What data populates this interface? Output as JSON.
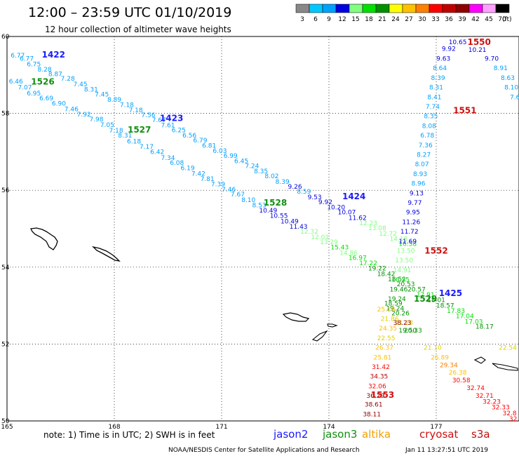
{
  "header": {
    "title": "12:00 – 23:59 UTC 01/10/2019",
    "subtitle": "12 hour collection of altimeter wave heights"
  },
  "footer": {
    "note": "note:  1) Time is in UTC;  2) SWH is in feet",
    "credit": "NOAA/NESDIS Center for Satellite Applications and Research",
    "timestamp": "Jan 11 13:27:51 UTC 2019"
  },
  "legend": {
    "unit": "(ft)",
    "labels": [
      "3",
      "6",
      "9",
      "12",
      "15",
      "18",
      "21",
      "24",
      "27",
      "30",
      "33",
      "36",
      "39",
      "42",
      "45",
      "70"
    ],
    "colors": [
      "#888888",
      "#00c8ff",
      "#00a0ff",
      "#0000e0",
      "#80ff80",
      "#00e000",
      "#009000",
      "#ffff00",
      "#ffc000",
      "#ff8000",
      "#ff0000",
      "#c00000",
      "#900000",
      "#ff00ff",
      "#ffa0ff",
      "#000000"
    ]
  },
  "satellites": [
    {
      "name": "jason2",
      "color": "#1a1aff"
    },
    {
      "name": "jason3",
      "color": "#109010"
    },
    {
      "name": "altika",
      "color": "#f0a000"
    },
    {
      "name": "cryosat",
      "color": "#d01010"
    },
    {
      "name": "s3a",
      "color": "#c01010"
    }
  ],
  "chart_data": {
    "type": "scatter",
    "title": "12:00 – 23:59 UTC 01/10/2019",
    "subtitle": "12 hour collection of altimeter wave heights",
    "xlim": [
      165,
      179.5
    ],
    "ylim": [
      50,
      60
    ],
    "x_ticks": [
      "165",
      "168",
      "171",
      "174",
      "177"
    ],
    "y_ticks": [
      "50",
      "52",
      "54",
      "56",
      "58",
      "60"
    ],
    "grid": "dotted",
    "units": "ft",
    "passes": [
      {
        "id": "1422",
        "sat": "jason2",
        "label": {
          "lon": 166.3,
          "lat": 59.45
        },
        "points": [
          [
            165.3,
            59.45,
            "6.77"
          ],
          [
            165.55,
            59.37,
            "6.77"
          ],
          [
            165.75,
            59.22,
            "6.75"
          ],
          [
            166.05,
            59.09,
            "8.28"
          ],
          [
            166.35,
            58.97,
            "8.87"
          ],
          [
            166.7,
            58.85,
            "7.28"
          ],
          [
            167.05,
            58.7,
            "7.45"
          ],
          [
            167.35,
            58.57,
            "8.31"
          ],
          [
            167.65,
            58.44,
            "7.45"
          ],
          [
            168.0,
            58.3,
            "8.89"
          ],
          [
            168.35,
            58.17,
            "7.18"
          ],
          [
            168.6,
            58.03,
            "7.18"
          ],
          [
            168.95,
            57.9,
            "7.56"
          ],
          [
            169.25,
            57.77,
            "7.67"
          ],
          [
            169.5,
            57.64,
            "7.61"
          ],
          [
            169.8,
            57.51,
            "6.25"
          ],
          [
            170.1,
            57.37,
            "6.56"
          ],
          [
            170.4,
            57.24,
            "6.79"
          ],
          [
            170.65,
            57.11,
            "6.81"
          ],
          [
            170.95,
            56.97,
            "6.03"
          ],
          [
            171.25,
            56.84,
            "6.99"
          ],
          [
            171.55,
            56.71,
            "6.45"
          ],
          [
            171.85,
            56.58,
            "7.24"
          ],
          [
            172.1,
            56.44,
            "8.35"
          ],
          [
            172.4,
            56.31,
            "8.02"
          ],
          [
            172.7,
            56.17,
            "8.39"
          ],
          [
            173.05,
            56.04,
            "9.26"
          ],
          [
            173.3,
            55.91,
            "8.59"
          ],
          [
            173.6,
            55.77,
            "9.53"
          ],
          [
            173.9,
            55.64,
            "9.92"
          ],
          [
            174.2,
            55.5,
            "10.20"
          ],
          [
            174.5,
            55.37,
            "10.07"
          ],
          [
            174.8,
            55.23,
            "11.62"
          ],
          [
            175.1,
            55.09,
            "12.23"
          ],
          [
            175.35,
            54.96,
            "13.08"
          ],
          [
            175.65,
            54.82,
            "12.72"
          ],
          [
            175.95,
            54.68,
            "14.18"
          ],
          [
            176.2,
            54.55,
            "16.58"
          ]
        ]
      },
      {
        "id": "1526",
        "sat": "jason3",
        "label": {
          "lon": 166.0,
          "lat": 58.75
        },
        "points": [
          [
            165.25,
            58.78,
            "6.46"
          ],
          [
            165.5,
            58.62,
            "7.07"
          ],
          [
            165.75,
            58.47,
            "6.95"
          ],
          [
            166.1,
            58.34,
            "6.69"
          ],
          [
            166.45,
            58.2,
            "6.90"
          ],
          [
            166.8,
            58.06,
            "7.46"
          ],
          [
            167.15,
            57.92,
            "7.92"
          ],
          [
            167.5,
            57.79,
            "7.98"
          ],
          [
            167.8,
            57.65,
            "7.05"
          ],
          [
            168.05,
            57.5,
            "7.18"
          ],
          [
            168.3,
            57.37,
            "8.31"
          ],
          [
            168.55,
            57.22,
            "6.18"
          ],
          [
            168.9,
            57.08,
            "7.17"
          ],
          [
            169.2,
            56.94,
            "6.42"
          ],
          [
            169.5,
            56.79,
            "7.34"
          ],
          [
            169.75,
            56.66,
            "6.08"
          ],
          [
            170.05,
            56.52,
            "6.19"
          ],
          [
            170.35,
            56.38,
            "7.42"
          ],
          [
            170.6,
            56.24,
            "7.81"
          ],
          [
            170.9,
            56.1,
            "7.39"
          ],
          [
            171.2,
            55.97,
            "7.46"
          ],
          [
            171.45,
            55.84,
            "7.67"
          ],
          [
            171.75,
            55.69,
            "8.10"
          ],
          [
            172.05,
            55.56,
            "8.53"
          ],
          [
            172.3,
            55.42,
            "10.49"
          ],
          [
            172.6,
            55.28,
            "10.55"
          ],
          [
            172.9,
            55.14,
            "10.49"
          ],
          [
            173.15,
            55.0,
            "11.43"
          ],
          [
            173.45,
            54.87,
            "12.32"
          ],
          [
            173.75,
            54.73,
            "12.01"
          ],
          [
            174.0,
            54.6,
            "13.29"
          ],
          [
            174.3,
            54.46,
            "15.43"
          ],
          [
            174.55,
            54.32,
            "14.86"
          ],
          [
            174.8,
            54.19,
            "16.97"
          ],
          [
            175.1,
            54.05,
            "17.22"
          ],
          [
            175.35,
            53.91,
            "19.22"
          ],
          [
            175.6,
            53.77,
            "18.42"
          ],
          [
            175.9,
            53.63,
            "18.52"
          ],
          [
            176.15,
            53.5,
            "20.53"
          ],
          [
            176.45,
            53.37,
            "20.57"
          ],
          [
            176.7,
            53.23,
            "17.91"
          ],
          [
            177.0,
            53.09,
            "18.01"
          ],
          [
            177.25,
            52.95,
            "18.57"
          ],
          [
            177.55,
            52.81,
            "17.83"
          ],
          [
            177.8,
            52.67,
            "17.04"
          ],
          [
            178.05,
            52.53,
            "17.03"
          ],
          [
            178.35,
            52.4,
            "18.17"
          ]
        ]
      },
      {
        "id": "1527",
        "sat": "jason3",
        "label": {
          "lon": 168.7,
          "lat": 57.5
        },
        "points": []
      },
      {
        "id": "1423",
        "sat": "jason2",
        "label": {
          "lon": 169.6,
          "lat": 57.8
        },
        "points": []
      },
      {
        "id": "1424",
        "sat": "jason2",
        "label": {
          "lon": 174.7,
          "lat": 55.77
        },
        "points": []
      },
      {
        "id": "1528",
        "sat": "jason3",
        "label": {
          "lon": 172.5,
          "lat": 55.6
        },
        "points": []
      },
      {
        "id": "1529",
        "sat": "jason3",
        "label": {
          "lon": 176.7,
          "lat": 53.1
        },
        "points": []
      },
      {
        "id": "1425",
        "sat": "jason2",
        "label": {
          "lon": 177.4,
          "lat": 53.25
        },
        "points": [
          [
            177.6,
            59.8,
            "10.65"
          ],
          [
            177.35,
            59.63,
            "9.92"
          ],
          [
            177.2,
            59.37,
            "9.63"
          ],
          [
            177.1,
            59.12,
            "8.64"
          ],
          [
            177.05,
            58.87,
            "8.39"
          ],
          [
            177.0,
            58.62,
            "8.31"
          ],
          [
            176.95,
            58.37,
            "8.41"
          ],
          [
            176.9,
            58.12,
            "7.74"
          ],
          [
            176.85,
            57.87,
            "8.35"
          ],
          [
            176.8,
            57.62,
            "8.08"
          ],
          [
            176.75,
            57.37,
            "6.78"
          ],
          [
            176.7,
            57.12,
            "7.36"
          ],
          [
            176.65,
            56.87,
            "8.27"
          ],
          [
            176.6,
            56.62,
            "8.07"
          ],
          [
            176.55,
            56.37,
            "8.93"
          ],
          [
            176.5,
            56.12,
            "8.96"
          ],
          [
            176.45,
            55.87,
            "9.13"
          ],
          [
            176.4,
            55.62,
            "9.77"
          ],
          [
            176.35,
            55.37,
            "9.95"
          ],
          [
            176.3,
            55.12,
            "11.26"
          ],
          [
            176.25,
            54.87,
            "11.72"
          ],
          [
            176.2,
            54.62,
            "11.69"
          ],
          [
            176.15,
            54.37,
            "13.50"
          ],
          [
            176.1,
            54.12,
            "13.50"
          ],
          [
            176.05,
            53.87,
            "14.91"
          ],
          [
            176.0,
            53.62,
            "16.55"
          ],
          [
            175.95,
            53.37,
            "19.46"
          ],
          [
            175.9,
            53.12,
            "19.24"
          ],
          [
            175.85,
            52.87,
            "19.24"
          ]
        ]
      },
      {
        "id": "1550",
        "sat": "cryosat",
        "label": {
          "lon": 178.2,
          "lat": 59.78
        },
        "points": [
          [
            178.15,
            59.6,
            "10.21"
          ],
          [
            178.55,
            59.37,
            "9.70"
          ],
          [
            178.8,
            59.12,
            "8.91"
          ],
          [
            179.0,
            58.87,
            "8.63"
          ],
          [
            179.1,
            58.62,
            "8.10"
          ],
          [
            179.2,
            58.37,
            "7.6"
          ]
        ]
      },
      {
        "id": "1551",
        "sat": "cryosat",
        "label": {
          "lon": 177.8,
          "lat": 58.0
        },
        "points": []
      },
      {
        "id": "1552",
        "sat": "cryosat",
        "label": {
          "lon": 177.0,
          "lat": 54.35
        },
        "points": []
      },
      {
        "id": "1553",
        "sat": "cryosat",
        "label": {
          "lon": 175.5,
          "lat": 50.6
        },
        "points": [
          [
            175.6,
            52.85,
            "25.18"
          ],
          [
            175.7,
            52.6,
            "21.86"
          ],
          [
            175.65,
            52.35,
            "24.35"
          ],
          [
            175.6,
            52.1,
            "22.55"
          ],
          [
            175.55,
            51.85,
            "26.37"
          ],
          [
            175.5,
            51.6,
            "25.81"
          ],
          [
            175.45,
            51.35,
            "31.42"
          ],
          [
            175.4,
            51.1,
            "34.35"
          ],
          [
            175.35,
            50.85,
            "32.06"
          ],
          [
            175.3,
            50.6,
            "36.29"
          ],
          [
            175.25,
            50.37,
            "38.61"
          ],
          [
            175.2,
            50.12,
            "38.11"
          ]
        ]
      },
      {
        "id": "altika",
        "sat": "altika",
        "label": null,
        "points": [
          [
            175.8,
            53.0,
            "18.59"
          ],
          [
            176.0,
            52.75,
            "20.26"
          ],
          [
            176.1,
            52.5,
            "21.28"
          ],
          [
            176.2,
            52.3,
            "19.50"
          ],
          [
            176.9,
            51.85,
            "21.10"
          ],
          [
            177.1,
            51.6,
            "26.89"
          ],
          [
            177.35,
            51.4,
            "29.34"
          ],
          [
            177.6,
            51.2,
            "26.38"
          ],
          [
            179.0,
            51.85,
            "22.54"
          ]
        ]
      },
      {
        "id": "s3a",
        "sat": "s3a",
        "label": null,
        "points": [
          [
            176.05,
            52.5,
            "38.23"
          ],
          [
            176.35,
            52.3,
            "20.33"
          ],
          [
            177.7,
            51.0,
            "30.58"
          ],
          [
            178.1,
            50.8,
            "32.74"
          ],
          [
            178.35,
            50.6,
            "32.71"
          ],
          [
            178.55,
            50.45,
            "32.23"
          ],
          [
            178.8,
            50.3,
            "32.33"
          ],
          [
            179.05,
            50.15,
            "32.8"
          ],
          [
            179.15,
            50.0,
            "32"
          ]
        ]
      }
    ]
  }
}
